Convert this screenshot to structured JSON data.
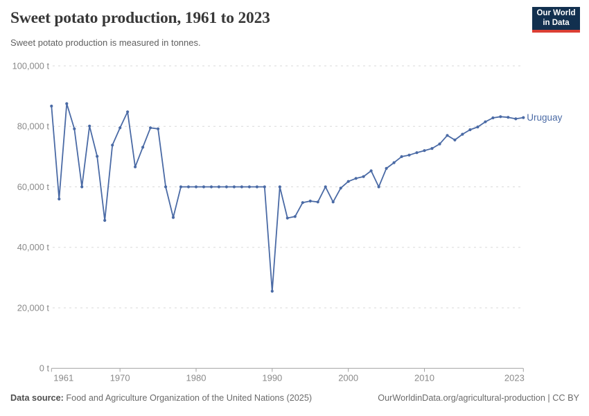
{
  "header": {
    "title": "Sweet potato production, 1961 to 2023",
    "subtitle": "Sweet potato production is measured in tonnes.",
    "logo": {
      "line1": "Our World",
      "line2": "in Data"
    }
  },
  "footer": {
    "source_label": "Data source:",
    "source_text": " Food and Agriculture Organization of the United Nations (2025)",
    "credit": "OurWorldinData.org/agricultural-production | CC BY"
  },
  "colors": {
    "series": "#4a6aa5",
    "grid": "#d9d9d9",
    "axis": "#a1a1a1",
    "tick_text": "#8a8a8a",
    "title_text": "#383838",
    "logo_bg": "#12304f",
    "logo_stripe": "#dc3f34"
  },
  "chart_data": {
    "type": "line",
    "title": "Sweet potato production, 1961 to 2023",
    "subtitle": "Sweet potato production is measured in tonnes.",
    "unit": "t",
    "xlim": [
      1961,
      2023
    ],
    "ylim": [
      0,
      100000
    ],
    "grid": "horizontal-dashed",
    "legend_position": "end-of-line-label",
    "x_ticks": [
      1961,
      1970,
      1980,
      1990,
      2000,
      2010,
      2023
    ],
    "y_ticks": [
      0,
      20000,
      40000,
      60000,
      80000,
      100000
    ],
    "y_tick_labels": [
      "0 t",
      "20,000 t",
      "40,000 t",
      "60,000 t",
      "80,000 t",
      "100,000 t"
    ],
    "series": [
      {
        "name": "Uruguay",
        "color": "#4a6aa5",
        "x": [
          1961,
          1962,
          1963,
          1964,
          1965,
          1966,
          1967,
          1968,
          1969,
          1970,
          1971,
          1972,
          1973,
          1974,
          1975,
          1976,
          1977,
          1978,
          1979,
          1980,
          1981,
          1982,
          1983,
          1984,
          1985,
          1986,
          1987,
          1988,
          1989,
          1990,
          1991,
          1992,
          1993,
          1994,
          1995,
          1996,
          1997,
          1998,
          1999,
          2000,
          2001,
          2002,
          2003,
          2004,
          2005,
          2006,
          2007,
          2008,
          2009,
          2010,
          2011,
          2012,
          2013,
          2014,
          2015,
          2016,
          2017,
          2018,
          2019,
          2020,
          2021,
          2022,
          2023
        ],
        "values": [
          86700,
          56000,
          87500,
          79200,
          60000,
          80100,
          70100,
          48900,
          73800,
          79500,
          84800,
          66600,
          73100,
          79500,
          79200,
          60000,
          49900,
          60000,
          60000,
          60000,
          60000,
          60000,
          60000,
          60000,
          60000,
          60000,
          60000,
          60000,
          60000,
          25500,
          60000,
          49700,
          50200,
          54800,
          55300,
          55000,
          60000,
          55000,
          59600,
          61800,
          62800,
          63400,
          65300,
          60000,
          66100,
          68000,
          70000,
          70500,
          71300,
          72000,
          72700,
          74200,
          77000,
          75500,
          77400,
          78900,
          79800,
          81500,
          82800,
          83200,
          83000,
          82500,
          82900
        ]
      }
    ]
  }
}
